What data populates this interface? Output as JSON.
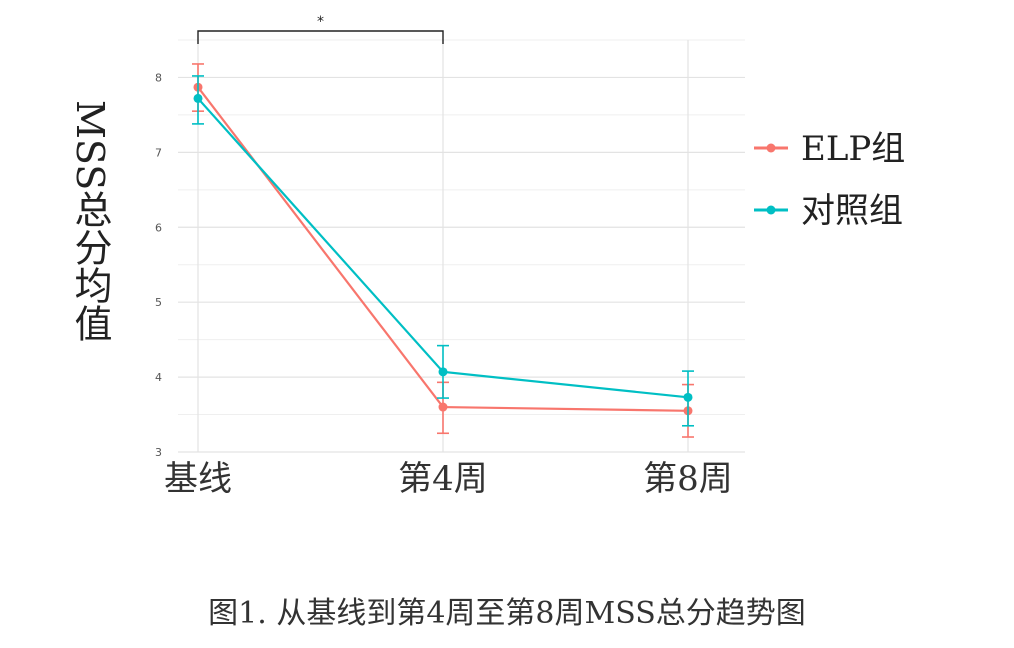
{
  "chart_data": {
    "type": "line",
    "categories": [
      "基线",
      "第4周",
      "第8周"
    ],
    "series": [
      {
        "name": "ELP组",
        "color": "#F8766D",
        "values": [
          7.87,
          3.6,
          3.55
        ],
        "error_low": [
          7.55,
          3.25,
          3.2
        ],
        "error_high": [
          8.18,
          3.93,
          3.9
        ]
      },
      {
        "name": "对照组",
        "color": "#00BFC4",
        "values": [
          7.72,
          4.07,
          3.73
        ],
        "error_low": [
          7.38,
          3.72,
          3.35
        ],
        "error_high": [
          8.02,
          4.42,
          4.08
        ]
      }
    ],
    "ylabel": "MSS总分均值",
    "xlabel": "",
    "ylim": [
      3.0,
      8.5
    ],
    "y_ticks": [
      3,
      4,
      5,
      6,
      7,
      8
    ],
    "grid": true,
    "legend_position": "right",
    "significance": {
      "from": "基线",
      "to": "第4周",
      "label": "*"
    }
  },
  "caption": "图1. 从基线到第4周至第8周MSS总分趋势图"
}
